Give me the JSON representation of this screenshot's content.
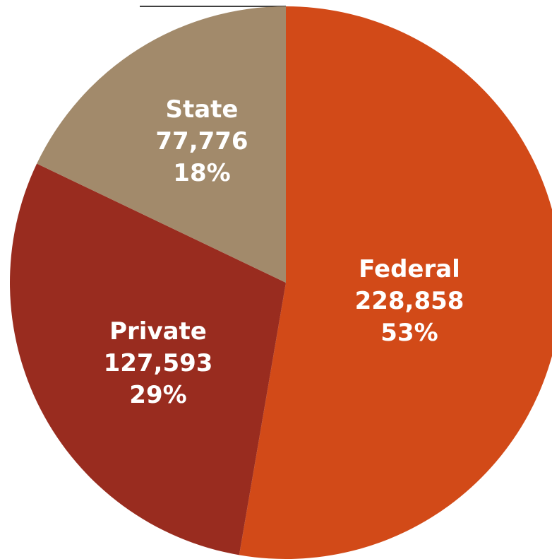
{
  "chart_data": {
    "type": "pie",
    "start_angle_deg": 0,
    "direction": "clockwise",
    "slices": [
      {
        "name": "Federal",
        "value": 228858,
        "value_label": "228,858",
        "percent_label": "53%",
        "color": "#D24A18"
      },
      {
        "name": "Private",
        "value": 127593,
        "value_label": "127,593",
        "percent_label": "29%",
        "color": "#992C1F"
      },
      {
        "name": "State",
        "value": 77776,
        "value_label": "77,776",
        "percent_label": "18%",
        "color": "#A28A6B"
      }
    ],
    "legend": "none"
  }
}
